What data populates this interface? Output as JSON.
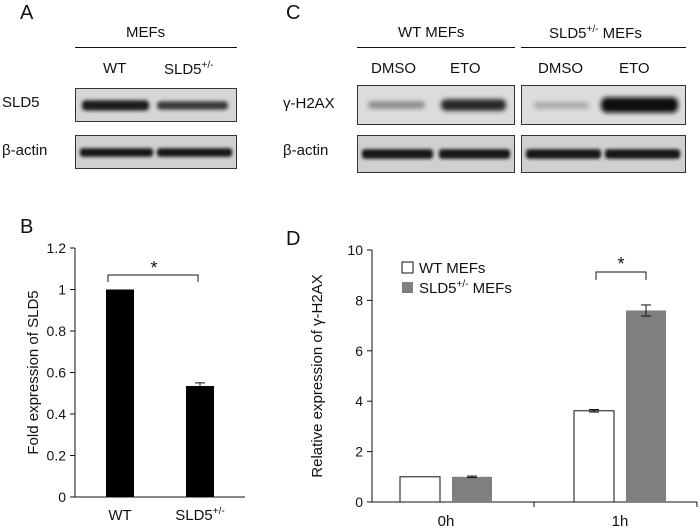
{
  "panel_a": {
    "letter": "A",
    "header": "MEFs",
    "lanes": [
      "WT",
      "SLD5"
    ],
    "lane2_sup": "+/-",
    "rows": [
      "SLD5",
      "β-actin"
    ]
  },
  "panel_c": {
    "letter": "C",
    "group1": "WT MEFs",
    "group2": "SLD5",
    "group2_sup": "+/-",
    "group2_suffix": " MEFs",
    "lanes": [
      "DMSO",
      "ETO",
      "DMSO",
      "ETO"
    ],
    "rows": [
      "γ-H2AX",
      "β-actin"
    ]
  },
  "chart_data": [
    {
      "panel": "B",
      "type": "bar",
      "categories": [
        "WT",
        "SLD5+/-"
      ],
      "values": [
        1.0,
        0.535
      ],
      "errors": [
        0.0,
        0.015
      ],
      "bar_color": "#000000",
      "ylabel": "Fold expression of SLD5",
      "ylim": [
        0,
        1.2
      ],
      "yticks": [
        "0",
        "0.2",
        "0.4",
        "0.6",
        "0.8",
        "1",
        "1.2"
      ],
      "significance": "*",
      "grid": false
    },
    {
      "panel": "D",
      "type": "bar",
      "categories": [
        "0h",
        "1h"
      ],
      "series": [
        {
          "name": "WT MEFs",
          "values": [
            1.0,
            3.62
          ],
          "errors": [
            0.0,
            0.05
          ],
          "color": "#ffffff"
        },
        {
          "name": "SLD5+/- MEFs",
          "values": [
            1.0,
            7.6
          ],
          "errors": [
            0.03,
            0.22
          ],
          "color": "#7f7f7f"
        }
      ],
      "legend_names": {
        "wt": "WT MEFs",
        "sld5_base": "SLD5",
        "sld5_sup": "+/-",
        "sld5_suffix": " MEFs"
      },
      "ylabel": "Relative expression of γ-H2AX",
      "ylim": [
        0,
        10
      ],
      "yticks": [
        "0",
        "2",
        "4",
        "6",
        "8",
        "10"
      ],
      "significance": "*",
      "legend_position": "top-left",
      "grid": false
    }
  ]
}
